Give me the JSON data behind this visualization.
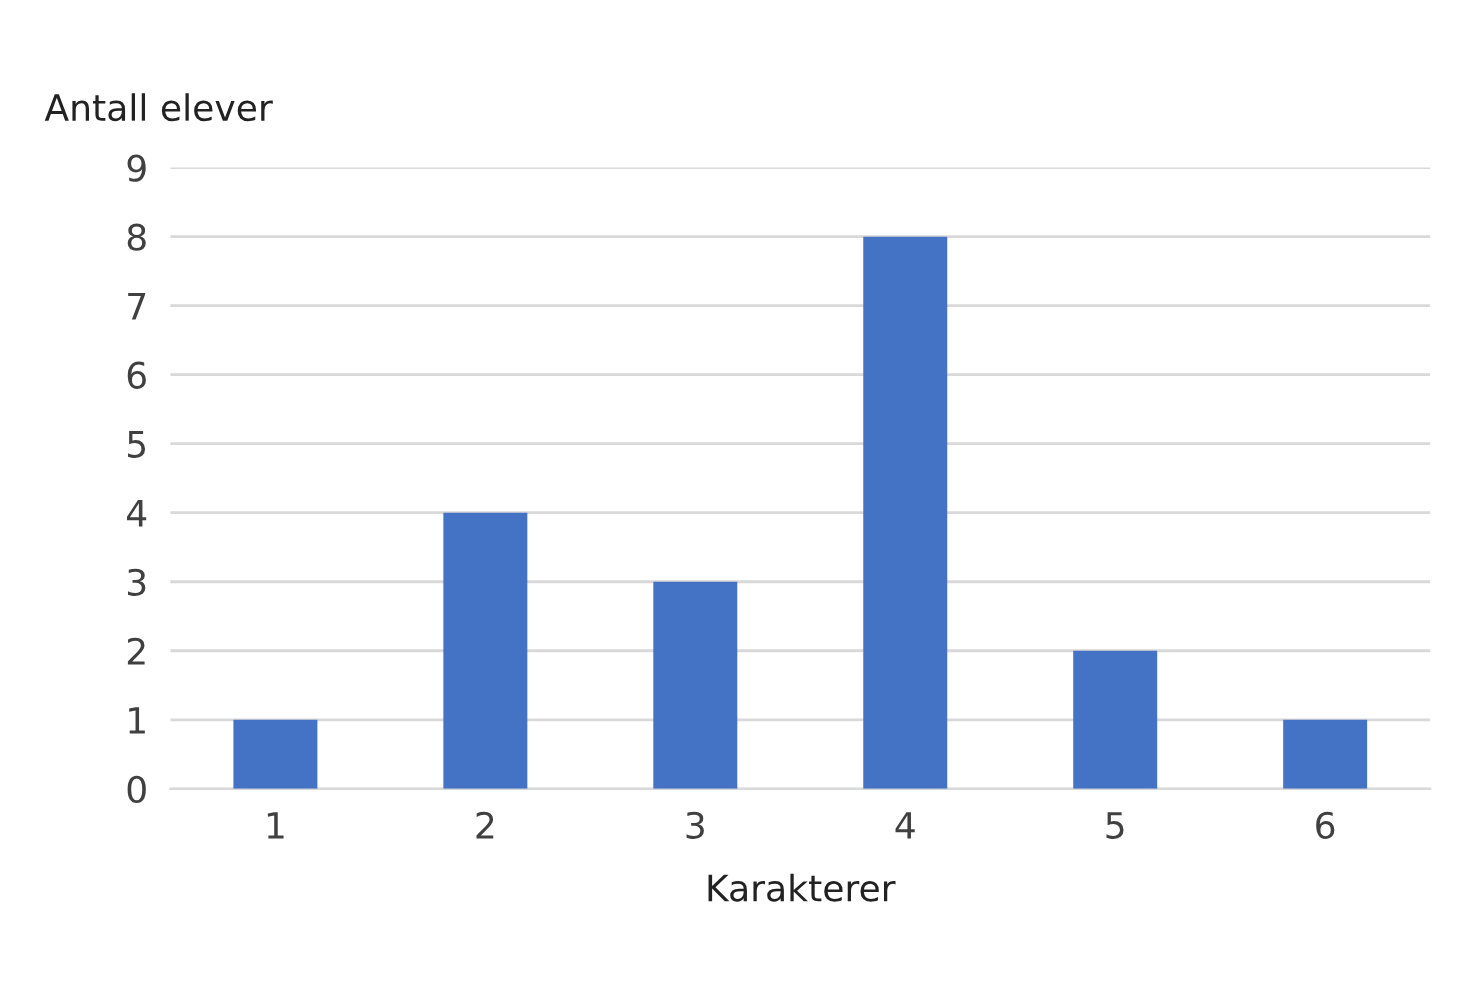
{
  "chart_data": {
    "type": "bar",
    "ylabel": "Antall elever",
    "xlabel": "Karakterer",
    "categories": [
      "1",
      "2",
      "3",
      "4",
      "5",
      "6"
    ],
    "values": [
      1,
      4,
      3,
      8,
      2,
      1
    ],
    "color": "#4472c4",
    "ylim": [
      0,
      9
    ],
    "yticks": [
      0,
      1,
      2,
      3,
      4,
      5,
      6,
      7,
      8,
      9
    ],
    "grid": "y",
    "legend": false
  }
}
